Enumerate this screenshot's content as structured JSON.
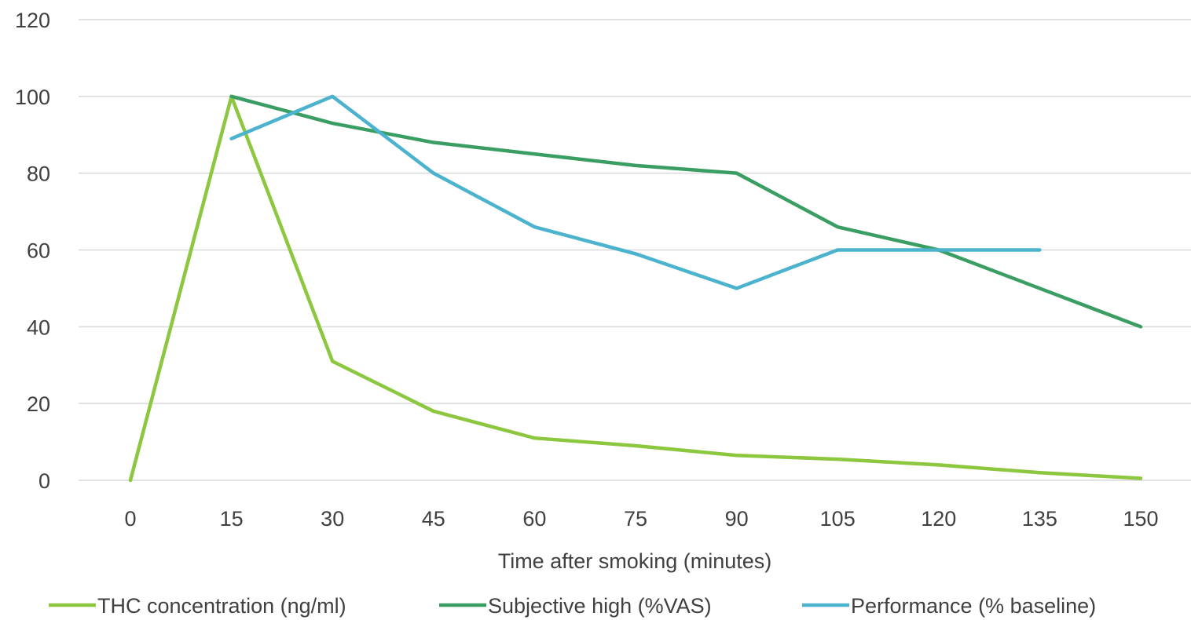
{
  "chart_data": {
    "type": "line",
    "xlabel": "Time after smoking (minutes)",
    "ylabel": "",
    "ylim": [
      0,
      120
    ],
    "yticks": [
      0,
      20,
      40,
      60,
      80,
      100,
      120
    ],
    "x": [
      0,
      15,
      30,
      45,
      60,
      75,
      90,
      105,
      120,
      135,
      150
    ],
    "grid": "horizontal",
    "legend_position": "bottom",
    "series": [
      {
        "name": "THC concentration (ng/ml)",
        "color": "#8DC63F",
        "values": [
          0,
          100,
          31,
          18,
          11,
          9,
          6.5,
          5.5,
          4,
          2,
          0.5
        ]
      },
      {
        "name": "Subjective high (%VAS)",
        "color": "#3A9E63",
        "values": [
          null,
          100,
          93,
          88,
          85,
          82,
          80,
          66,
          60,
          50,
          40
        ]
      },
      {
        "name": "Performance (% baseline)",
        "color": "#4BB3CE",
        "values": [
          null,
          89,
          100,
          80,
          66,
          59,
          50,
          60,
          60,
          60,
          null
        ]
      }
    ]
  }
}
